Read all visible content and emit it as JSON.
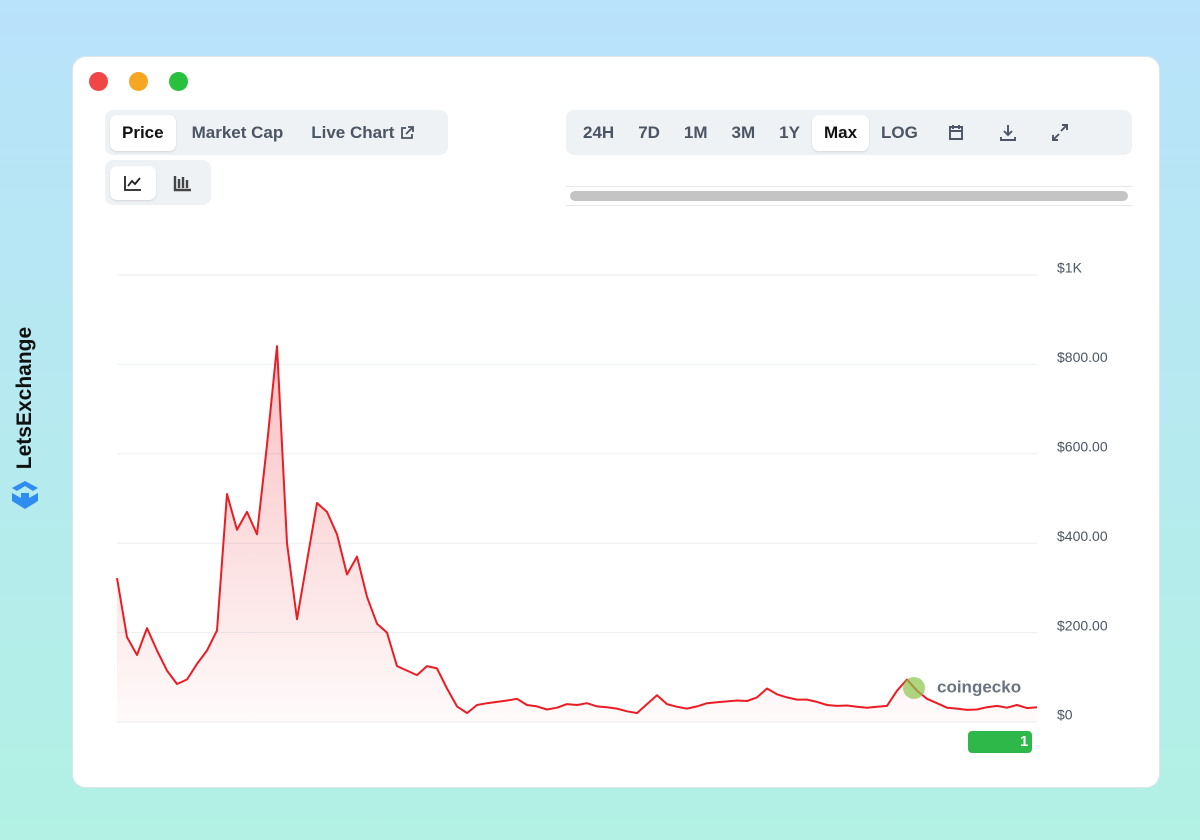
{
  "brand": "LetsExchange",
  "tabs": [
    "Price",
    "Market Cap",
    "Live Chart"
  ],
  "ranges": [
    "24H",
    "7D",
    "1M",
    "3M",
    "1Y",
    "Max",
    "LOG"
  ],
  "watermark": "coingecko",
  "badge": "1",
  "chart_data": {
    "type": "area",
    "color": "#ea1d25",
    "values": [
      322,
      190,
      150,
      210,
      160,
      115,
      85,
      95,
      130,
      160,
      205,
      510,
      430,
      470,
      420,
      620,
      841,
      400,
      230,
      360,
      490,
      470,
      420,
      330,
      370,
      280,
      220,
      200,
      125,
      115,
      105,
      125,
      120,
      75,
      35,
      20,
      38,
      42,
      45,
      48,
      52,
      38,
      35,
      28,
      32,
      40,
      38,
      42,
      35,
      33,
      30,
      24,
      20,
      40,
      60,
      40,
      34,
      30,
      35,
      42,
      44,
      46,
      48,
      47,
      55,
      75,
      62,
      55,
      50,
      50,
      45,
      38,
      36,
      37,
      34,
      32,
      34,
      36,
      70,
      95,
      70,
      52,
      42,
      32,
      30,
      27,
      28,
      33,
      36,
      32,
      38,
      31,
      33
    ],
    "ylim": [
      0,
      1000
    ],
    "yticks": [
      {
        "value": 0,
        "label": "$0"
      },
      {
        "value": 200,
        "label": "$200.00"
      },
      {
        "value": 400,
        "label": "$400.00"
      },
      {
        "value": 600,
        "label": "$600.00"
      },
      {
        "value": 800,
        "label": "$800.00"
      },
      {
        "value": 1000,
        "label": "$1K"
      }
    ],
    "grid": true
  }
}
